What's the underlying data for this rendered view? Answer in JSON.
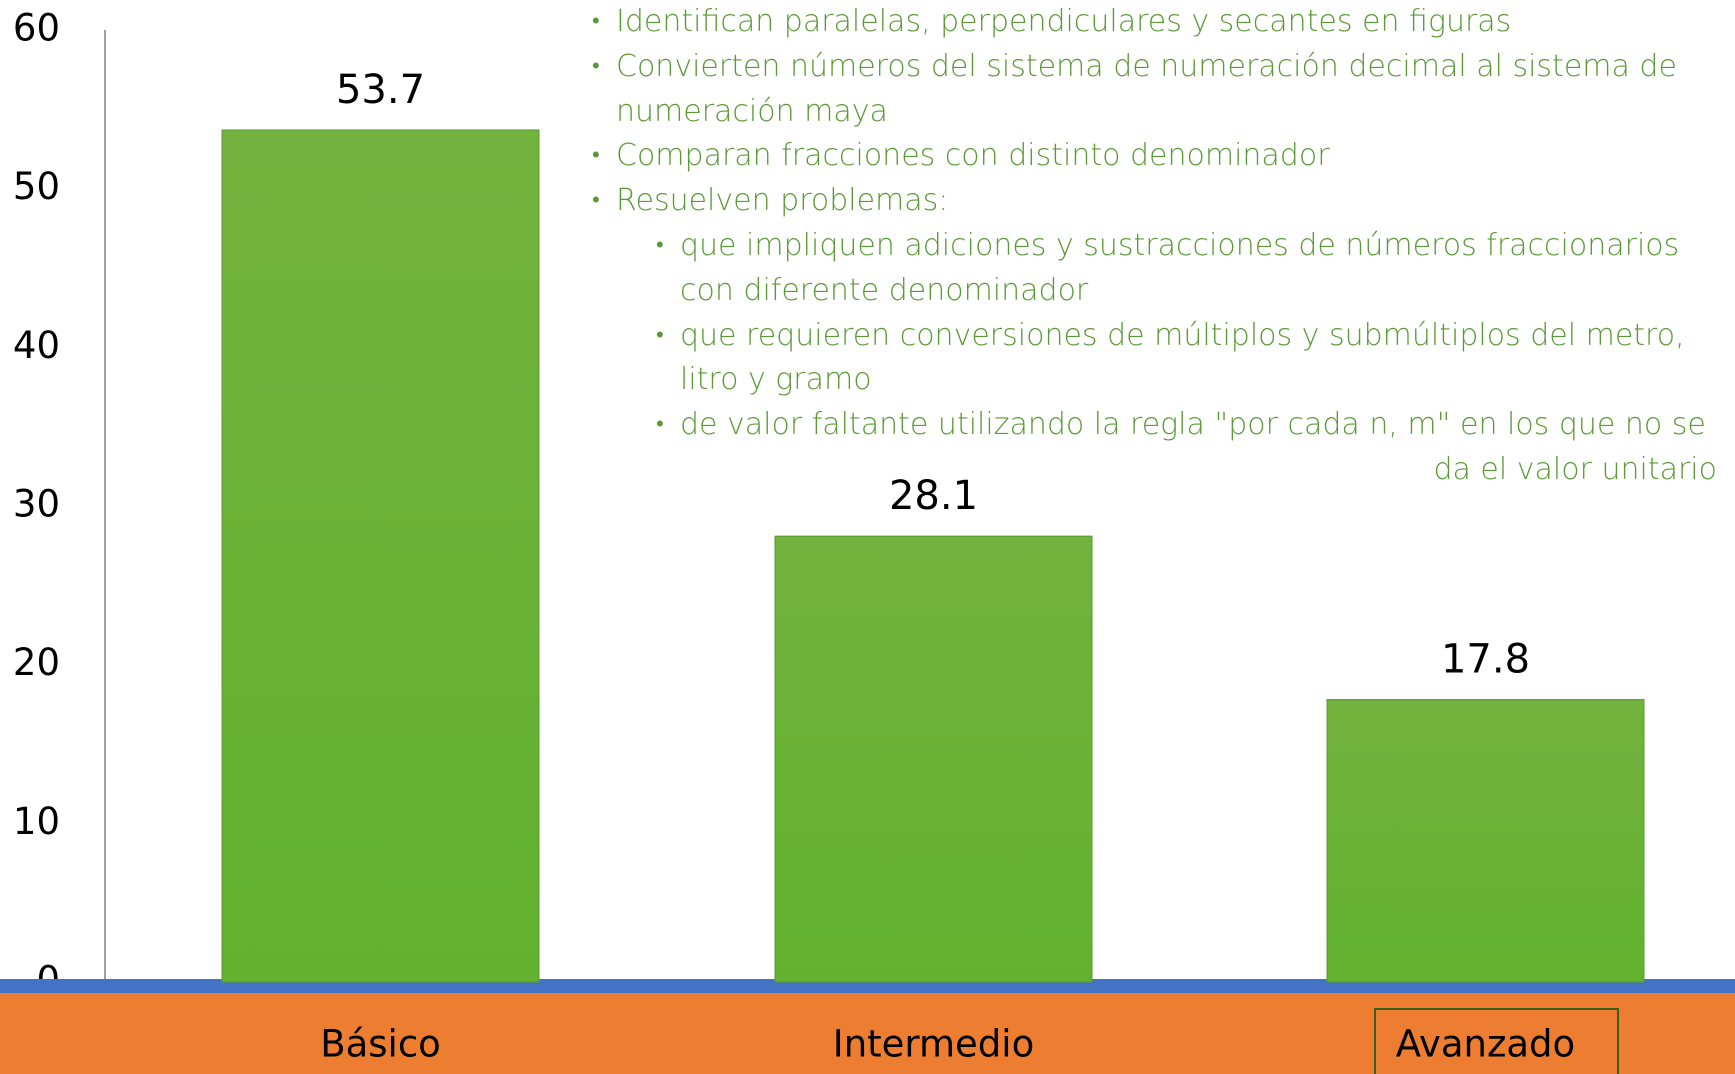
{
  "chart_data": {
    "type": "bar",
    "categories": [
      "Básico",
      "Intermedio",
      "Avanzado"
    ],
    "values": [
      53.7,
      28.1,
      17.8
    ],
    "color": "#6db33f",
    "ylim": [
      0,
      60
    ],
    "yticks": [
      0,
      10,
      20,
      30,
      40,
      50,
      60
    ],
    "grid": false,
    "highlighted_category": 2,
    "annotation": {
      "items": [
        {
          "text": "Identifican paralelas, perpendiculares y secantes en figuras"
        },
        {
          "text": "Convierten números del sistema de numeración decimal al sistema de numeración maya"
        },
        {
          "text": "Comparan fracciones con distinto denominador"
        },
        {
          "text": "Resuelven problemas:",
          "subitems": [
            "que impliquen adiciones y sustracciones de números fraccionarios con diferente denominador",
            "que requieren conversiones de múltiplos y submúltiplos del metro, litro y gramo",
            "de valor faltante utilizando la regla \"por cada  n, m\" en los que no se da el valor unitario"
          ]
        }
      ]
    }
  }
}
